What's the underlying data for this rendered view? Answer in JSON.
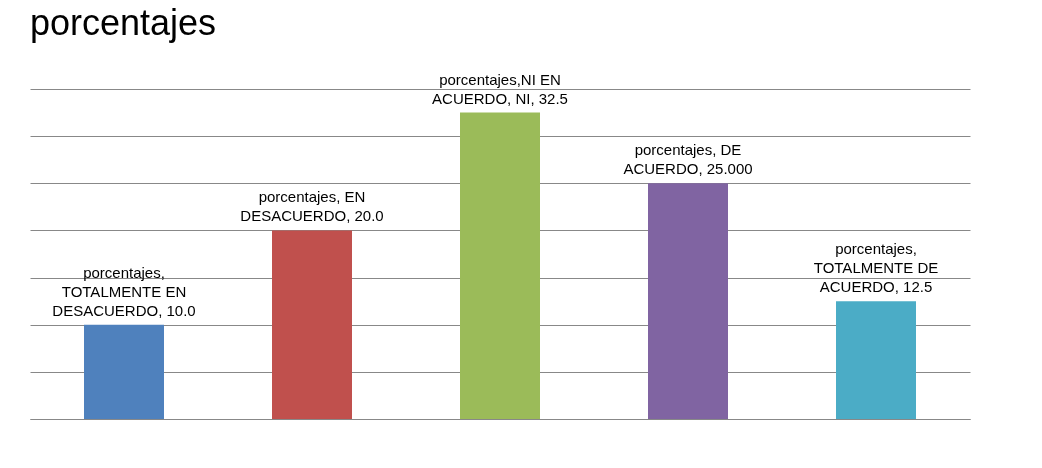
{
  "chart_data": {
    "type": "bar",
    "title": "porcentajes",
    "categories": [
      null,
      null,
      null,
      null,
      null
    ],
    "values": [
      10.0,
      20.0,
      32.5,
      25.0,
      12.5
    ],
    "colors": [
      "#4f81bd",
      "#c0504d",
      "#9bbb59",
      "#8064a2",
      "#4bacc6"
    ],
    "value_labels": [
      "porcentajes, TOTALMENTE EN DESACUERDO, 10.0",
      "porcentajes,  EN DESACUERDO, 20.0",
      "porcentajes,NI EN ACUERDO, NI, 32.5",
      "porcentajes, DE ACUERDO, 25.000",
      "porcentajes, TOTALMENTE DE ACUERDO, 12.5"
    ],
    "ylim": [
      0,
      35
    ],
    "yticks": [
      {
        "value": 0,
        "label": null
      },
      {
        "value": 5,
        "label": null
      },
      {
        "value": 10,
        "label": null
      },
      {
        "value": 15,
        "label": null
      },
      {
        "value": 20,
        "label": null
      },
      {
        "value": 25,
        "label": null
      },
      {
        "value": 30,
        "label": null
      },
      {
        "value": 35,
        "label": null
      }
    ],
    "tick_labels": false,
    "grid": "y"
  }
}
